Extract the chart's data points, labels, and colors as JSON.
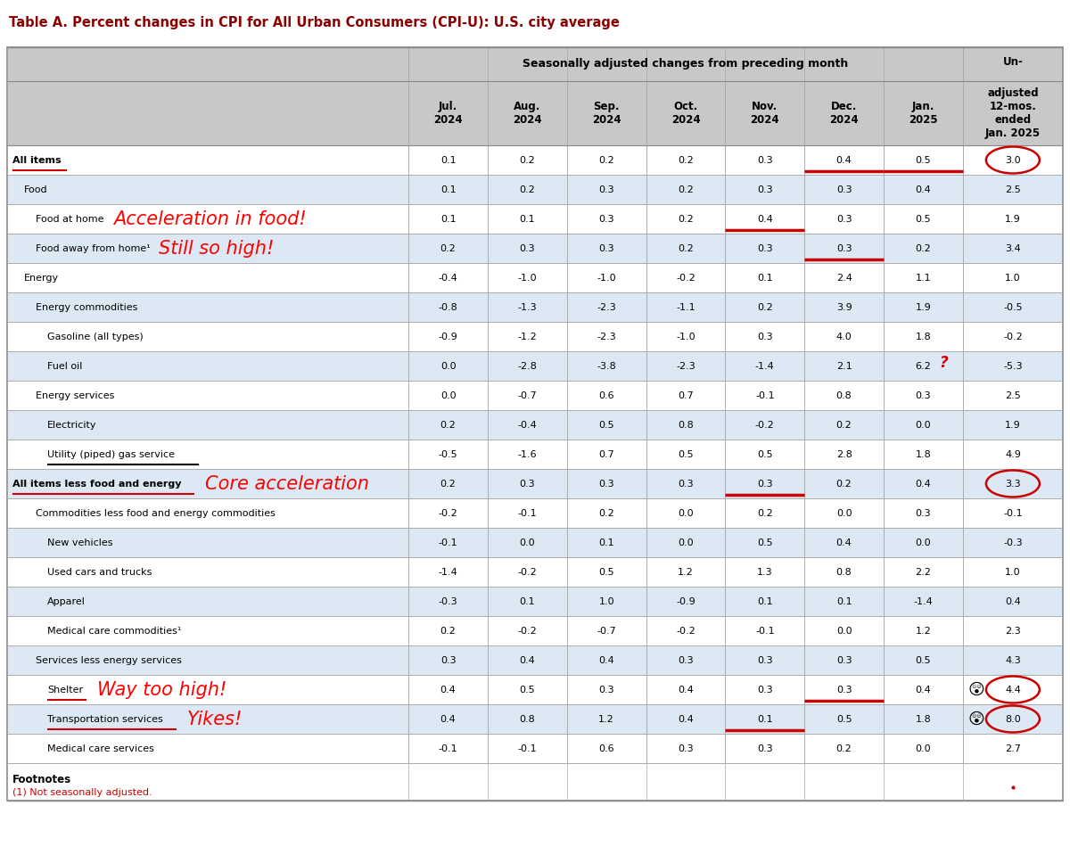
{
  "title": "Table A. Percent changes in CPI for All Urban Consumers (CPI-U): U.S. city average",
  "title_color": "#8B0000",
  "header1": "Seasonally adjusted changes from preceding month",
  "col_headers": [
    "Jul.\n2024",
    "Aug.\n2024",
    "Sep.\n2024",
    "Oct.\n2024",
    "Nov.\n2024",
    "Dec.\n2024",
    "Jan.\n2025"
  ],
  "unadj_header": "Un-\nadjusted\n12-mos.\nended\nJan. 2025",
  "rows": [
    {
      "label": "All items",
      "indent": 0,
      "bold": true,
      "bg": "white",
      "label_underline": "red",
      "values": [
        "0.1",
        "0.2",
        "0.2",
        "0.2",
        "0.3",
        "0.4",
        "0.5",
        "3.0"
      ],
      "circle_last": true,
      "red_bars": [
        5,
        6
      ]
    },
    {
      "label": "Food",
      "indent": 1,
      "bold": false,
      "bg": "light_blue",
      "values": [
        "0.1",
        "0.2",
        "0.3",
        "0.2",
        "0.3",
        "0.3",
        "0.4",
        "2.5"
      ]
    },
    {
      "label": "Food at home",
      "indent": 2,
      "bold": false,
      "bg": "white",
      "annotation": "Acceleration in food!",
      "annotation_color": "#FF0000",
      "values": [
        "0.1",
        "0.1",
        "0.3",
        "0.2",
        "0.4",
        "0.3",
        "0.5",
        "1.9"
      ],
      "red_bars": [
        4
      ]
    },
    {
      "label": "Food away from home¹",
      "indent": 2,
      "bold": false,
      "bg": "light_blue",
      "annotation": "Still so high!",
      "annotation_color": "#FF0000",
      "values": [
        "0.2",
        "0.3",
        "0.3",
        "0.2",
        "0.3",
        "0.3",
        "0.2",
        "3.4"
      ],
      "red_bars": [
        5
      ]
    },
    {
      "label": "Energy",
      "indent": 1,
      "bold": false,
      "bg": "white",
      "values": [
        "-0.4",
        "-1.0",
        "-1.0",
        "-0.2",
        "0.1",
        "2.4",
        "1.1",
        "1.0"
      ]
    },
    {
      "label": "Energy commodities",
      "indent": 2,
      "bold": false,
      "bg": "light_blue",
      "values": [
        "-0.8",
        "-1.3",
        "-2.3",
        "-1.1",
        "0.2",
        "3.9",
        "1.9",
        "-0.5"
      ]
    },
    {
      "label": "Gasoline (all types)",
      "indent": 3,
      "bold": false,
      "bg": "white",
      "values": [
        "-0.9",
        "-1.2",
        "-2.3",
        "-1.0",
        "0.3",
        "4.0",
        "1.8",
        "-0.2"
      ]
    },
    {
      "label": "Fuel oil",
      "indent": 3,
      "bold": false,
      "bg": "light_blue",
      "question_mark": true,
      "values": [
        "0.0",
        "-2.8",
        "-3.8",
        "-2.3",
        "-1.4",
        "2.1",
        "6.2",
        "-5.3"
      ]
    },
    {
      "label": "Energy services",
      "indent": 2,
      "bold": false,
      "bg": "white",
      "values": [
        "0.0",
        "-0.7",
        "0.6",
        "0.7",
        "-0.1",
        "0.8",
        "0.3",
        "2.5"
      ]
    },
    {
      "label": "Electricity",
      "indent": 3,
      "bold": false,
      "bg": "light_blue",
      "values": [
        "0.2",
        "-0.4",
        "0.5",
        "0.8",
        "-0.2",
        "0.2",
        "0.0",
        "1.9"
      ]
    },
    {
      "label": "Utility (piped) gas service",
      "indent": 3,
      "bold": false,
      "bg": "white",
      "label_underline": "black",
      "values": [
        "-0.5",
        "-1.6",
        "0.7",
        "0.5",
        "0.5",
        "2.8",
        "1.8",
        "4.9"
      ]
    },
    {
      "label": "All items less food and energy",
      "indent": 0,
      "bold": true,
      "bg": "light_blue",
      "label_underline": "red",
      "annotation": "Core acceleration",
      "annotation_color": "#FF0000",
      "values": [
        "0.2",
        "0.3",
        "0.3",
        "0.3",
        "0.3",
        "0.2",
        "0.4",
        "3.3"
      ],
      "circle_last": true,
      "red_bars": [
        4
      ]
    },
    {
      "label": "Commodities less food and energy commodities",
      "indent": 2,
      "bold": false,
      "bg": "white",
      "values": [
        "-0.2",
        "-0.1",
        "0.2",
        "0.0",
        "0.2",
        "0.0",
        "0.3",
        "-0.1"
      ]
    },
    {
      "label": "New vehicles",
      "indent": 3,
      "bold": false,
      "bg": "light_blue",
      "values": [
        "-0.1",
        "0.0",
        "0.1",
        "0.0",
        "0.5",
        "0.4",
        "0.0",
        "-0.3"
      ]
    },
    {
      "label": "Used cars and trucks",
      "indent": 3,
      "bold": false,
      "bg": "white",
      "values": [
        "-1.4",
        "-0.2",
        "0.5",
        "1.2",
        "1.3",
        "0.8",
        "2.2",
        "1.0"
      ]
    },
    {
      "label": "Apparel",
      "indent": 3,
      "bold": false,
      "bg": "light_blue",
      "values": [
        "-0.3",
        "0.1",
        "1.0",
        "-0.9",
        "0.1",
        "0.1",
        "-1.4",
        "0.4"
      ]
    },
    {
      "label": "Medical care commodities¹",
      "indent": 3,
      "bold": false,
      "bg": "white",
      "values": [
        "0.2",
        "-0.2",
        "-0.7",
        "-0.2",
        "-0.1",
        "0.0",
        "1.2",
        "2.3"
      ]
    },
    {
      "label": "Services less energy services",
      "indent": 2,
      "bold": false,
      "bg": "light_blue",
      "values": [
        "0.3",
        "0.4",
        "0.4",
        "0.3",
        "0.3",
        "0.3",
        "0.5",
        "4.3"
      ]
    },
    {
      "label": "Shelter",
      "indent": 3,
      "bold": false,
      "bg": "white",
      "label_underline": "red",
      "annotation": "Way too high!",
      "annotation_color": "#FF0000",
      "values": [
        "0.4",
        "0.5",
        "0.3",
        "0.4",
        "0.3",
        "0.3",
        "0.4",
        "4.4"
      ],
      "circle_last": true,
      "emoji": true,
      "red_bars": [
        5
      ]
    },
    {
      "label": "Transportation services",
      "indent": 3,
      "bold": false,
      "bg": "light_blue",
      "label_underline": "red",
      "annotation": "Yikes!",
      "annotation_color": "#FF0000",
      "values": [
        "0.4",
        "0.8",
        "1.2",
        "0.4",
        "0.1",
        "0.5",
        "1.8",
        "8.0"
      ],
      "circle_last": true,
      "emoji": true,
      "red_bars": [
        4
      ]
    },
    {
      "label": "Medical care services",
      "indent": 3,
      "bold": false,
      "bg": "white",
      "values": [
        "-0.1",
        "-0.1",
        "0.6",
        "0.3",
        "0.3",
        "0.2",
        "0.0",
        "2.7"
      ]
    }
  ],
  "footnote_bold": "Footnotes",
  "footnote_text": "(1) Not seasonally adjusted.",
  "bg_light_blue": "#dce9f5",
  "bg_white": "#FFFFFF",
  "bg_header": "#C8C8C8",
  "grid_color": "#AAAAAA"
}
